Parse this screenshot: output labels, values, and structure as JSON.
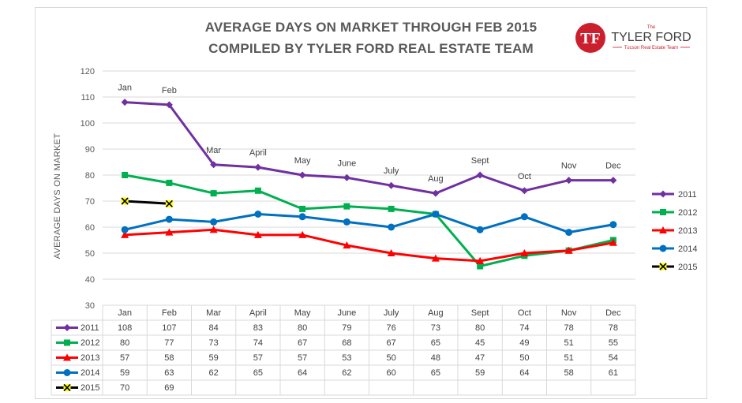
{
  "title_line1": "AVERAGE DAYS ON MARKET THROUGH FEB 2015",
  "title_line2": "COMPILED BY TYLER FORD REAL ESTATE TEAM",
  "logo": {
    "small": "The",
    "name": "TYLER FORD",
    "tagline": "Tucson Real Estate Team",
    "mark": "TF"
  },
  "chart_data": {
    "type": "line",
    "ylabel": "AVERAGE DAYS ON MARKET",
    "ylim": [
      30,
      120
    ],
    "yticks": [
      30,
      40,
      50,
      60,
      70,
      80,
      90,
      100,
      110,
      120
    ],
    "grid": true,
    "legend": "right",
    "categories": [
      "Jan",
      "Feb",
      "Mar",
      "April",
      "May",
      "June",
      "July",
      "Aug",
      "Sept",
      "Oct",
      "Nov",
      "Dec"
    ],
    "month_labels": [
      "Jan",
      "Feb",
      "Mar",
      "April",
      "May",
      "June",
      "July",
      "Aug",
      "Sept",
      "Oct",
      "Nov",
      "Dec"
    ],
    "series": [
      {
        "name": "2011",
        "color": "#7030a0",
        "marker": "diamond",
        "values": [
          108,
          107,
          84,
          83,
          80,
          79,
          76,
          73,
          80,
          74,
          78,
          78
        ]
      },
      {
        "name": "2012",
        "color": "#00b050",
        "marker": "square",
        "values": [
          80,
          77,
          73,
          74,
          67,
          68,
          67,
          65,
          45,
          49,
          51,
          55
        ]
      },
      {
        "name": "2013",
        "color": "#ff0000",
        "marker": "triangle",
        "values": [
          57,
          58,
          59,
          57,
          57,
          53,
          50,
          48,
          47,
          50,
          51,
          54
        ]
      },
      {
        "name": "2014",
        "color": "#0070c0",
        "marker": "circle",
        "values": [
          59,
          63,
          62,
          65,
          64,
          62,
          60,
          65,
          59,
          64,
          58,
          61
        ]
      },
      {
        "name": "2015",
        "color": "#000000",
        "marker": "x",
        "marker_fill": "#ffff00",
        "values": [
          70,
          69,
          null,
          null,
          null,
          null,
          null,
          null,
          null,
          null,
          null,
          null
        ]
      }
    ]
  }
}
